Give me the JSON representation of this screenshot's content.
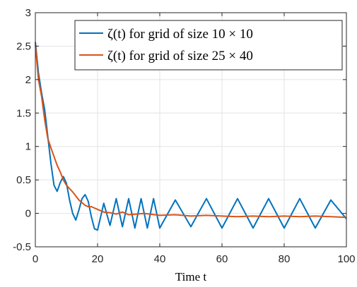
{
  "chart_data": {
    "type": "line",
    "xlabel": "Time t",
    "ylabel": "",
    "xlim": [
      0,
      100
    ],
    "ylim": [
      -0.5,
      3
    ],
    "xticks": [
      "0",
      "20",
      "40",
      "60",
      "80",
      "100"
    ],
    "yticks": [
      "-0.5",
      "0",
      "0.5",
      "1",
      "1.5",
      "2",
      "2.5",
      "3"
    ],
    "grid": true,
    "legend_position": "top-right",
    "series": [
      {
        "name": "ζ(t) for grid of size 10 × 10",
        "color": "#0072BD",
        "x": [
          0,
          1,
          2,
          3,
          4,
          5,
          6,
          7,
          8,
          9,
          10,
          11,
          12,
          13,
          14,
          15,
          16,
          17,
          18,
          19,
          20,
          22,
          24,
          26,
          28,
          30,
          32,
          34,
          36,
          38,
          40,
          45,
          50,
          55,
          60,
          65,
          70,
          75,
          80,
          85,
          90,
          95,
          100
        ],
        "y": [
          2.56,
          2.1,
          1.8,
          1.55,
          1.15,
          0.75,
          0.42,
          0.33,
          0.46,
          0.55,
          0.45,
          0.2,
          0.0,
          -0.1,
          0.05,
          0.22,
          0.28,
          0.18,
          -0.05,
          -0.23,
          -0.25,
          0.15,
          -0.18,
          0.22,
          -0.2,
          0.22,
          -0.22,
          0.22,
          -0.22,
          0.22,
          -0.22,
          0.2,
          -0.2,
          0.22,
          -0.22,
          0.22,
          -0.22,
          0.22,
          -0.22,
          0.22,
          -0.22,
          0.2,
          -0.08
        ]
      },
      {
        "name": "ζ(t) for grid of size 25 × 40",
        "color": "#D95319",
        "x": [
          0,
          1,
          2,
          3,
          4,
          5,
          6,
          7,
          8,
          9,
          10,
          11,
          12,
          13,
          14,
          15,
          16,
          17,
          18,
          19,
          20,
          22,
          24,
          26,
          28,
          30,
          35,
          40,
          45,
          50,
          55,
          60,
          65,
          70,
          75,
          80,
          85,
          90,
          95,
          100
        ],
        "y": [
          2.52,
          2.0,
          1.75,
          1.4,
          1.12,
          0.98,
          0.85,
          0.72,
          0.62,
          0.5,
          0.42,
          0.37,
          0.32,
          0.26,
          0.2,
          0.16,
          0.12,
          0.1,
          0.1,
          0.08,
          0.06,
          0.02,
          0.01,
          -0.01,
          0.02,
          -0.02,
          0.0,
          -0.03,
          -0.02,
          -0.04,
          -0.03,
          -0.04,
          -0.05,
          -0.04,
          -0.05,
          -0.04,
          -0.05,
          -0.04,
          -0.05,
          -0.06
        ]
      }
    ]
  }
}
